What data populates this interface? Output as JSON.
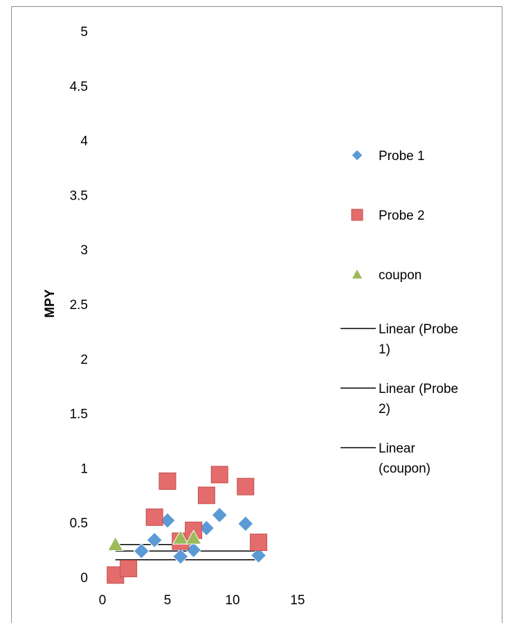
{
  "chart_data": {
    "type": "scatter",
    "title": "",
    "xlabel": "",
    "ylabel": "MPY",
    "xlim": [
      0,
      15
    ],
    "ylim": [
      0,
      5
    ],
    "x_ticks": [
      "0",
      "5",
      "10",
      "15"
    ],
    "y_ticks": [
      "0",
      "0.5",
      "1",
      "1.5",
      "2",
      "2.5",
      "3",
      "3.5",
      "4",
      "4.5",
      "5"
    ],
    "grid": false,
    "legend_position": "right",
    "series": [
      {
        "name": "Probe 1",
        "marker": "diamond",
        "color": "#5b9bd5",
        "points": [
          [
            2,
            0.07
          ],
          [
            3,
            0.24
          ],
          [
            4,
            0.34
          ],
          [
            5,
            0.52
          ],
          [
            6,
            0.19
          ],
          [
            7,
            0.25
          ],
          [
            8,
            0.45
          ],
          [
            9,
            0.57
          ],
          [
            11,
            0.49
          ],
          [
            12,
            0.2
          ]
        ]
      },
      {
        "name": "Probe 2",
        "marker": "square",
        "color": "#e46c6c",
        "points": [
          [
            1,
            0.02
          ],
          [
            2,
            0.08
          ],
          [
            4,
            0.55
          ],
          [
            5,
            0.88
          ],
          [
            6,
            0.33
          ],
          [
            7,
            0.43
          ],
          [
            8,
            0.75
          ],
          [
            9,
            0.94
          ],
          [
            11,
            0.83
          ],
          [
            12,
            0.32
          ]
        ]
      },
      {
        "name": "coupon",
        "marker": "triangle",
        "color": "#9bbb59",
        "points": [
          [
            1,
            0.3
          ],
          [
            6,
            0.36
          ],
          [
            7,
            0.36
          ]
        ]
      }
    ],
    "trendlines": [
      {
        "name": "Linear (Probe 1)",
        "color": "#000000",
        "x": [
          1,
          12
        ],
        "y": [
          0.24,
          0.24
        ]
      },
      {
        "name": "Linear (Probe 2)",
        "color": "#000000",
        "x": [
          1,
          12
        ],
        "y": [
          0.16,
          0.16
        ]
      },
      {
        "name": "Linear (coupon)",
        "color": "#000000",
        "x": [
          1,
          7
        ],
        "y": [
          0.3,
          0.3
        ]
      }
    ],
    "legend": [
      {
        "label": "Probe 1",
        "symbol": "diamond",
        "color": "#5b9bd5"
      },
      {
        "label": "Probe 2",
        "symbol": "square",
        "color": "#e46c6c"
      },
      {
        "label": "coupon",
        "symbol": "triangle",
        "color": "#9bbb59"
      },
      {
        "label_lines": [
          "Linear (Probe",
          "1)"
        ],
        "symbol": "line",
        "color": "#000000"
      },
      {
        "label_lines": [
          "Linear (Probe",
          "2)"
        ],
        "symbol": "line",
        "color": "#000000"
      },
      {
        "label_lines": [
          "Linear",
          "(coupon)"
        ],
        "symbol": "line",
        "color": "#000000"
      }
    ]
  }
}
